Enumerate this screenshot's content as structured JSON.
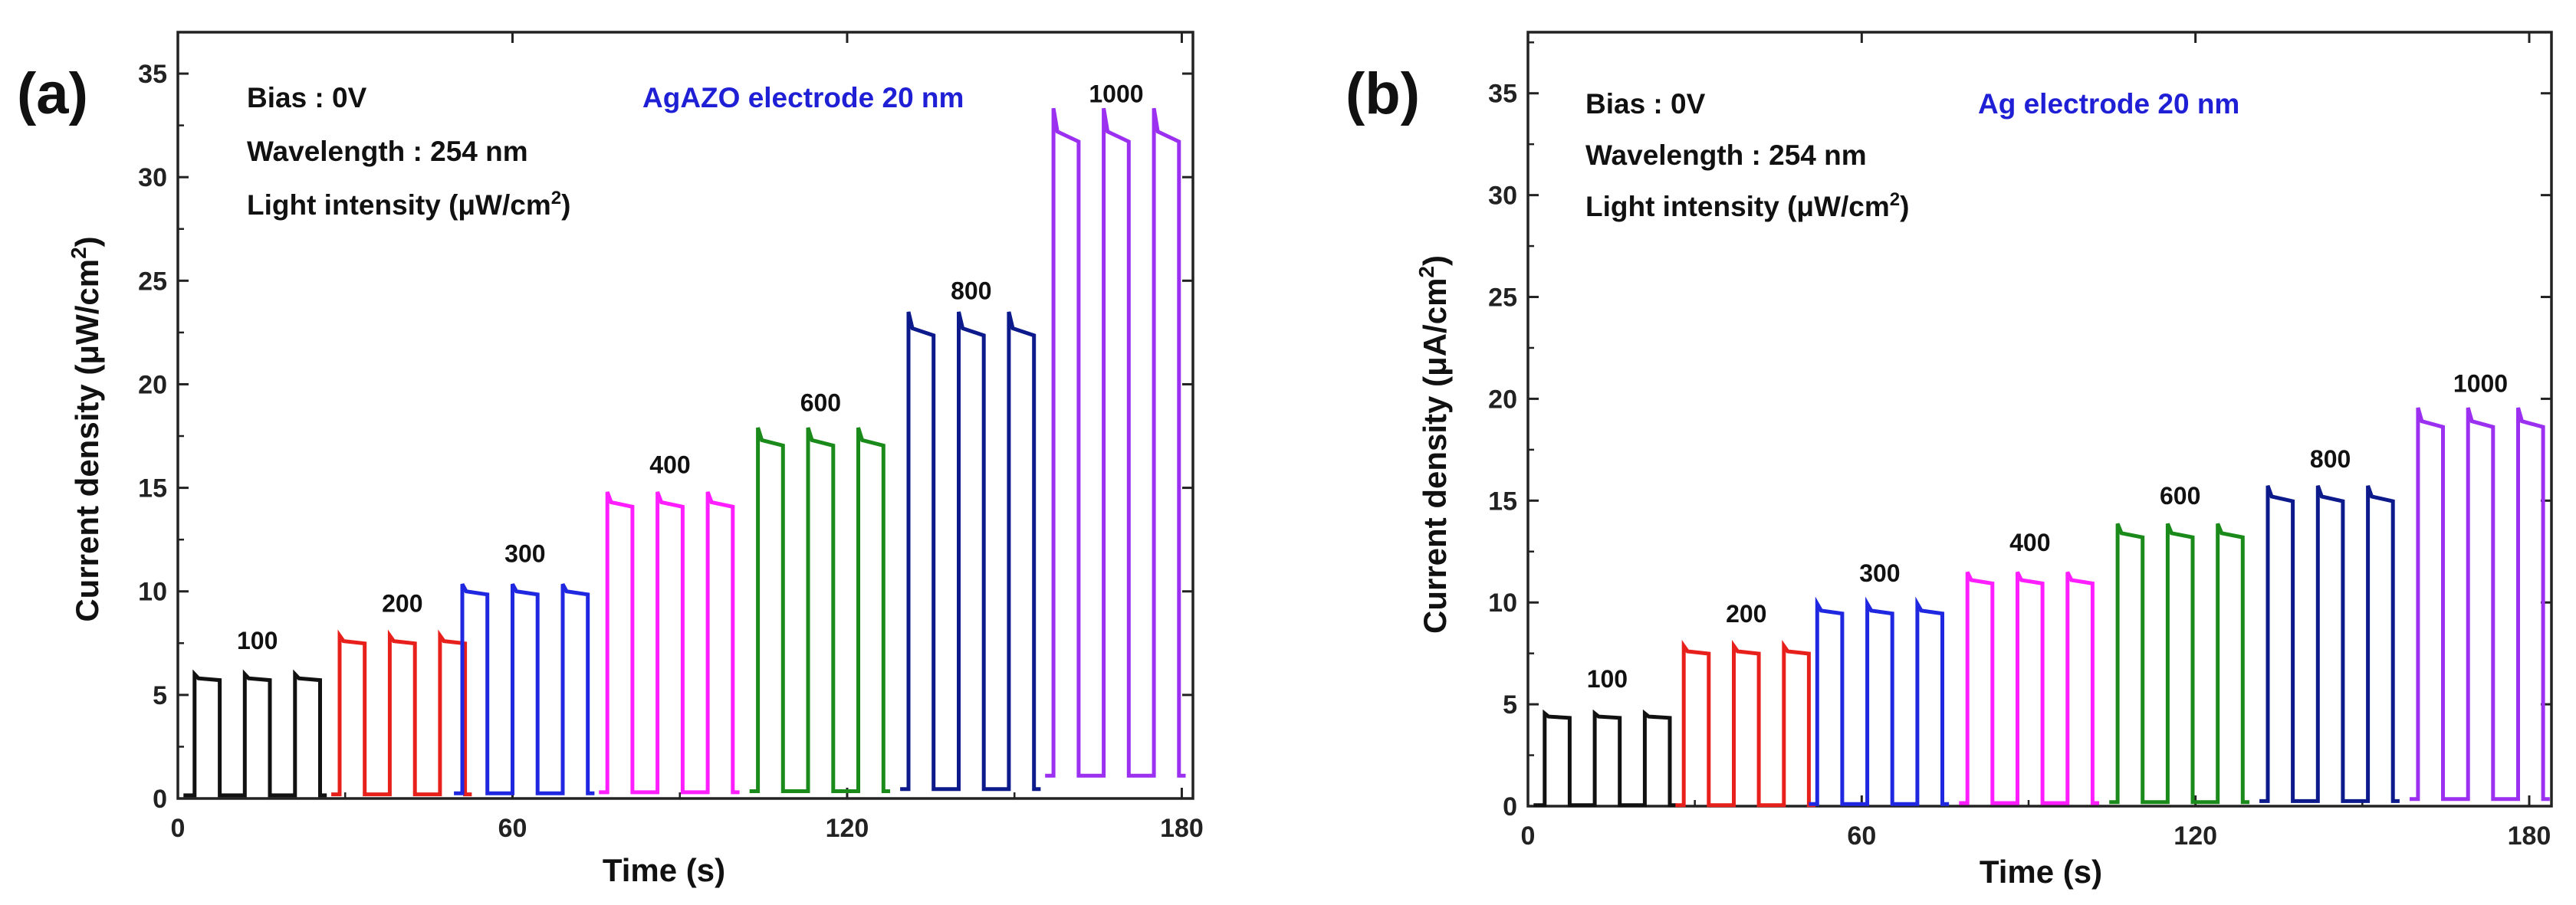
{
  "chart_data": [
    {
      "panel": "(a)",
      "type": "line",
      "title": "",
      "xlabel": "Time (s)",
      "ylabel": "Current density (μW/cm2)",
      "ylabel_main": "Current density (μW/cm",
      "ylabel_sup": "2",
      "ylabel_close": ")",
      "xlim": [
        0,
        182
      ],
      "ylim": [
        0,
        37
      ],
      "xticks": [
        0,
        60,
        120,
        180
      ],
      "yticks": [
        0,
        5,
        10,
        15,
        20,
        25,
        30,
        35
      ],
      "grid": false,
      "annotations": {
        "bias": "Bias : 0V",
        "wavelength": "Wavelength : 254 nm",
        "intensity_main": "Light intensity (μW/cm",
        "intensity_sup": "2",
        "intensity_close": ")",
        "electrode": "AgAZO electrode 20 nm"
      },
      "electrode_color": "#1f1fd6",
      "period_s": 9,
      "pulses_per_intensity": 3,
      "series": [
        {
          "name": "100",
          "label": "100",
          "color": "#111111",
          "t_start": 3,
          "on_value": 5.8,
          "dark_value": 0.15
        },
        {
          "name": "200",
          "label": "200",
          "color": "#e8201c",
          "t_start": 29,
          "on_value": 7.6,
          "dark_value": 0.2
        },
        {
          "name": "300",
          "label": "300",
          "color": "#1f28e0",
          "t_start": 51,
          "on_value": 10.0,
          "dark_value": 0.25
        },
        {
          "name": "400",
          "label": "400",
          "color": "#ff1eff",
          "t_start": 77,
          "on_value": 14.3,
          "dark_value": 0.3
        },
        {
          "name": "600",
          "label": "600",
          "color": "#1a8a1a",
          "t_start": 104,
          "on_value": 17.3,
          "dark_value": 0.35
        },
        {
          "name": "800",
          "label": "800",
          "color": "#0c1a8c",
          "t_start": 131,
          "on_value": 22.7,
          "dark_value": 0.45
        },
        {
          "name": "1000",
          "label": "1000",
          "color": "#9b30f0",
          "t_start": 157,
          "on_value": 32.2,
          "dark_value": 1.1
        }
      ]
    },
    {
      "panel": "(b)",
      "type": "line",
      "title": "",
      "xlabel": "Time (s)",
      "ylabel": "Current density (μA/cm2)",
      "ylabel_main": "Current density (μA/cm",
      "ylabel_sup": "2",
      "ylabel_close": ")",
      "xlim": [
        0,
        184
      ],
      "ylim": [
        0,
        38
      ],
      "xticks": [
        0,
        60,
        120,
        180
      ],
      "yticks": [
        0,
        5,
        10,
        15,
        20,
        25,
        30,
        35
      ],
      "grid": false,
      "annotations": {
        "bias": "Bias : 0V",
        "wavelength": "Wavelength : 254 nm",
        "intensity_main": "Light intensity (μW/cm",
        "intensity_sup": "2",
        "intensity_close": ")",
        "electrode": "Ag electrode 20 nm"
      },
      "electrode_color": "#1f1fd6",
      "period_s": 9,
      "pulses_per_intensity": 3,
      "series": [
        {
          "name": "100",
          "label": "100",
          "color": "#111111",
          "t_start": 3,
          "on_value": 4.4,
          "dark_value": 0.05
        },
        {
          "name": "200",
          "label": "200",
          "color": "#e8201c",
          "t_start": 28,
          "on_value": 7.6,
          "dark_value": 0.05
        },
        {
          "name": "300",
          "label": "300",
          "color": "#1f28e0",
          "t_start": 52,
          "on_value": 9.6,
          "dark_value": 0.1
        },
        {
          "name": "400",
          "label": "400",
          "color": "#ff1eff",
          "t_start": 79,
          "on_value": 11.1,
          "dark_value": 0.15
        },
        {
          "name": "600",
          "label": "600",
          "color": "#1a8a1a",
          "t_start": 106,
          "on_value": 13.4,
          "dark_value": 0.2
        },
        {
          "name": "800",
          "label": "800",
          "color": "#0c1a8c",
          "t_start": 133,
          "on_value": 15.2,
          "dark_value": 0.25
        },
        {
          "name": "1000",
          "label": "1000",
          "color": "#9b30f0",
          "t_start": 160,
          "on_value": 18.9,
          "dark_value": 0.35
        }
      ]
    }
  ]
}
